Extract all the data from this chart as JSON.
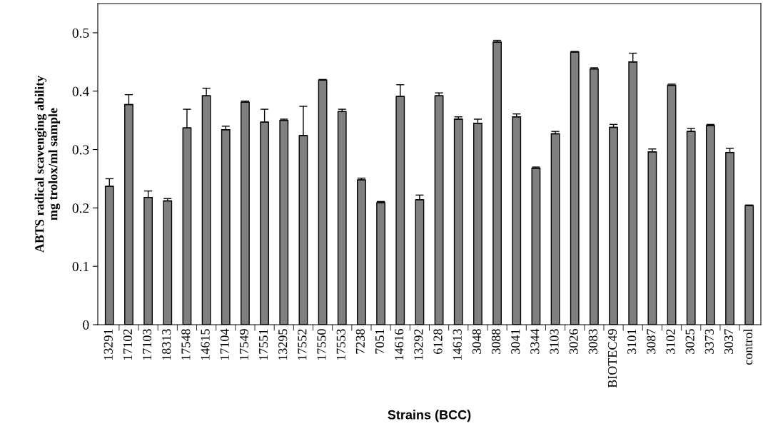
{
  "chart_data": {
    "type": "bar",
    "xlabel": "Strains (BCC)",
    "ylabel": "ABTS radical scavenging ability\nmg trolox/ml sample",
    "categories": [
      "13291",
      "17102",
      "17103",
      "18313",
      "17548",
      "14615",
      "17104",
      "17549",
      "17551",
      "13295",
      "17552",
      "17550",
      "17553",
      "7238",
      "7051",
      "14616",
      "13292",
      "6128",
      "14613",
      "3048",
      "3088",
      "3041",
      "3344",
      "3103",
      "3026",
      "3083",
      "BIOTEC49",
      "3101",
      "3087",
      "3102",
      "3025",
      "3373",
      "3037",
      "control"
    ],
    "values": [
      0.237,
      0.377,
      0.218,
      0.212,
      0.337,
      0.392,
      0.334,
      0.381,
      0.347,
      0.35,
      0.324,
      0.419,
      0.365,
      0.248,
      0.209,
      0.391,
      0.214,
      0.392,
      0.352,
      0.345,
      0.484,
      0.356,
      0.268,
      0.327,
      0.467,
      0.438,
      0.338,
      0.45,
      0.296,
      0.41,
      0.331,
      0.341,
      0.295,
      0.204
    ],
    "errors": [
      [
        0.237,
        0.25
      ],
      [
        0.377,
        0.394
      ],
      [
        0.218,
        0.229
      ],
      [
        0.212,
        0.216
      ],
      [
        0.337,
        0.369
      ],
      [
        0.392,
        0.405
      ],
      [
        0.334,
        0.34
      ],
      [
        0.381,
        0.383
      ],
      [
        0.347,
        0.369
      ],
      [
        0.35,
        0.352
      ],
      [
        0.324,
        0.374
      ],
      [
        0.419,
        0.42
      ],
      [
        0.365,
        0.369
      ],
      [
        0.248,
        0.251
      ],
      [
        0.209,
        0.211
      ],
      [
        0.391,
        0.411
      ],
      [
        0.214,
        0.222
      ],
      [
        0.392,
        0.397
      ],
      [
        0.352,
        0.356
      ],
      [
        0.345,
        0.352
      ],
      [
        0.484,
        0.487
      ],
      [
        0.356,
        0.361
      ],
      [
        0.268,
        0.27
      ],
      [
        0.327,
        0.331
      ],
      [
        0.467,
        0.468
      ],
      [
        0.438,
        0.44
      ],
      [
        0.338,
        0.343
      ],
      [
        0.45,
        0.465
      ],
      [
        0.296,
        0.301
      ],
      [
        0.41,
        0.412
      ],
      [
        0.331,
        0.336
      ],
      [
        0.341,
        0.343
      ],
      [
        0.295,
        0.302
      ],
      [
        0.204,
        0.205
      ]
    ],
    "color": "#808080",
    "ylim": [
      0,
      0.55
    ],
    "yticks": [
      {
        "value": 0,
        "label": "0"
      },
      0.1,
      0.2,
      0.3,
      0.4,
      0.5
    ],
    "grid": false,
    "legend": false
  }
}
